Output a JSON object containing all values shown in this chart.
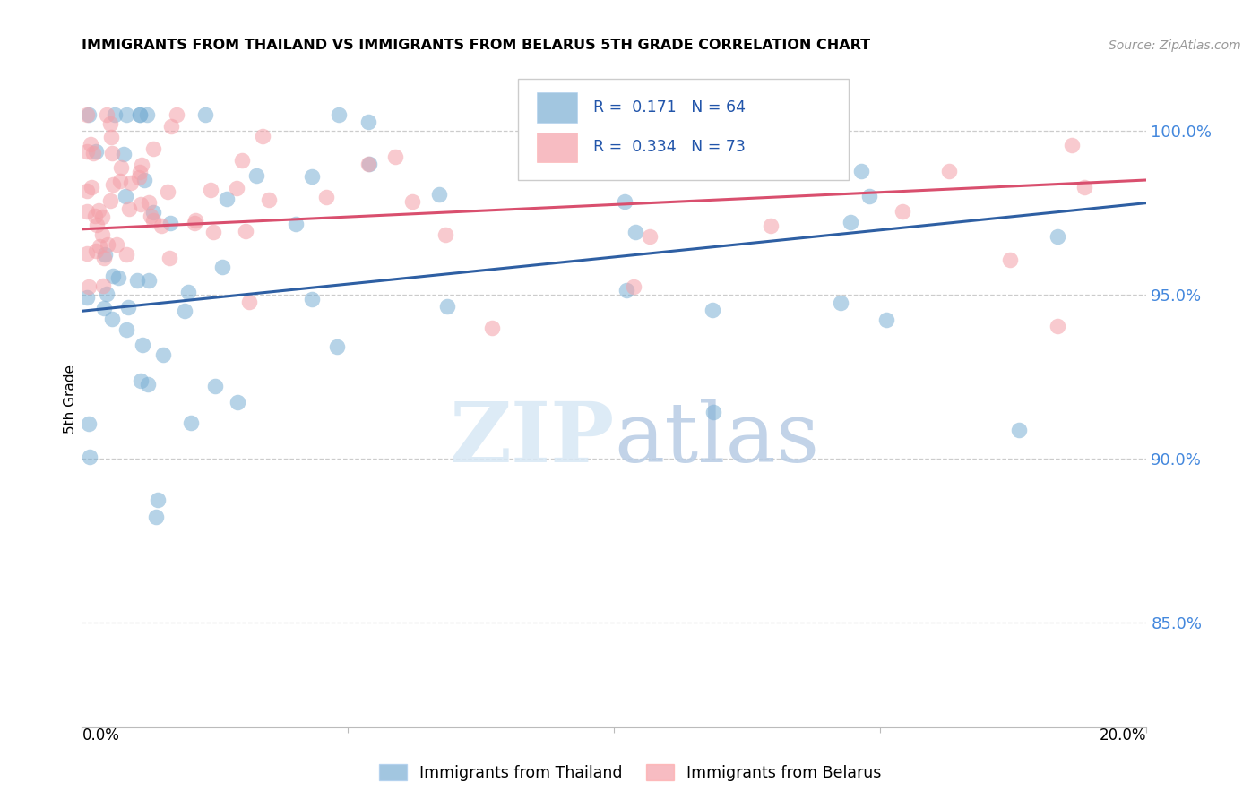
{
  "title": "IMMIGRANTS FROM THAILAND VS IMMIGRANTS FROM BELARUS 5TH GRADE CORRELATION CHART",
  "source": "Source: ZipAtlas.com",
  "ylabel": "5th Grade",
  "y_ticks": [
    0.85,
    0.9,
    0.95,
    1.0
  ],
  "y_labels": [
    "85.0%",
    "90.0%",
    "95.0%",
    "100.0%"
  ],
  "xmin": 0.0,
  "xmax": 0.2,
  "ymin": 0.818,
  "ymax": 1.018,
  "legend_label1": "Immigrants from Thailand",
  "legend_label2": "Immigrants from Belarus",
  "R1": 0.171,
  "N1": 64,
  "R2": 0.334,
  "N2": 73,
  "color_thailand": "#7BAFD4",
  "color_belarus": "#F4A0A8",
  "color_line_thailand": "#2E5FA3",
  "color_line_belarus": "#D94F6E",
  "line_blue_y0": 0.945,
  "line_blue_y1": 0.978,
  "line_pink_y0": 0.97,
  "line_pink_y1": 0.985
}
